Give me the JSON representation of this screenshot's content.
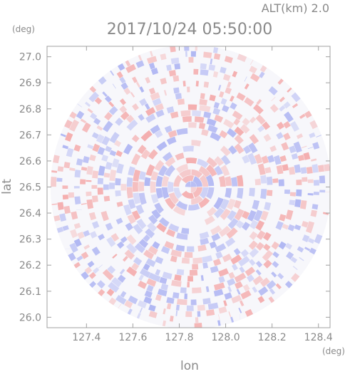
{
  "chart_data": {
    "type": "heatmap",
    "title": "2017/10/24 05:50:00",
    "subtitle": "ALT(km) 2.0",
    "xlabel": "lon",
    "ylabel": "lat",
    "x_unit": "(deg)",
    "y_unit": "(deg)",
    "xlim": [
      127.23,
      128.45
    ],
    "ylim": [
      25.96,
      27.04
    ],
    "x_ticks": [
      "127.4",
      "127.6",
      "127.8",
      "128.0",
      "128.2",
      "128.4"
    ],
    "x_tick_values": [
      127.4,
      127.6,
      127.8,
      128.0,
      128.2,
      128.4
    ],
    "y_ticks": [
      "26.0",
      "26.1",
      "26.2",
      "26.3",
      "26.4",
      "26.5",
      "26.6",
      "26.7",
      "26.8",
      "26.9",
      "27.0"
    ],
    "y_tick_values": [
      26.0,
      26.1,
      26.2,
      26.3,
      26.4,
      26.5,
      26.6,
      26.7,
      26.8,
      26.9,
      27.0
    ],
    "grid": false,
    "radar_center": {
      "lon": 127.85,
      "lat": 26.5
    },
    "radar_radius_deg": {
      "lon": 0.605,
      "lat": 0.545
    },
    "colors": {
      "positive": "#f4a6a6",
      "negative": "#a9b0f2",
      "neutral": "#f7f7fb",
      "axis": "#a0a0a0",
      "text": "#8a8a8a"
    }
  }
}
